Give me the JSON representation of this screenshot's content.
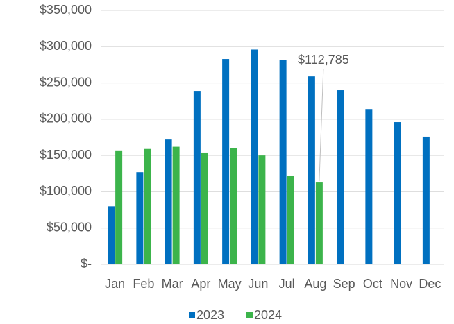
{
  "chart_data": {
    "type": "bar",
    "categories": [
      "Jan",
      "Feb",
      "Mar",
      "Apr",
      "May",
      "Jun",
      "Jul",
      "Aug",
      "Sep",
      "Oct",
      "Nov",
      "Dec"
    ],
    "series": [
      {
        "name": "2023",
        "color": "#0070c0",
        "values": [
          80000,
          127000,
          172000,
          239000,
          283000,
          296000,
          282000,
          259000,
          240000,
          214000,
          196000,
          176000
        ]
      },
      {
        "name": "2024",
        "color": "#3cb44b",
        "values": [
          157000,
          159000,
          162000,
          154000,
          160000,
          150000,
          122000,
          112785,
          null,
          null,
          null,
          null
        ],
        "value_labels": [
          null,
          null,
          null,
          null,
          null,
          null,
          null,
          "$112,785",
          null,
          null,
          null,
          null
        ]
      }
    ],
    "ylim": [
      0,
      350000
    ],
    "yticks": [
      {
        "value": 0,
        "label": "$-"
      },
      {
        "value": 50000,
        "label": "$50,000"
      },
      {
        "value": 100000,
        "label": "$100,000"
      },
      {
        "value": 150000,
        "label": "$150,000"
      },
      {
        "value": 200000,
        "label": "$200,000"
      },
      {
        "value": 250000,
        "label": "$250,000"
      },
      {
        "value": 300000,
        "label": "$300,000"
      },
      {
        "value": 350000,
        "label": "$350,000"
      }
    ],
    "grid": true,
    "legend": "bottom"
  }
}
